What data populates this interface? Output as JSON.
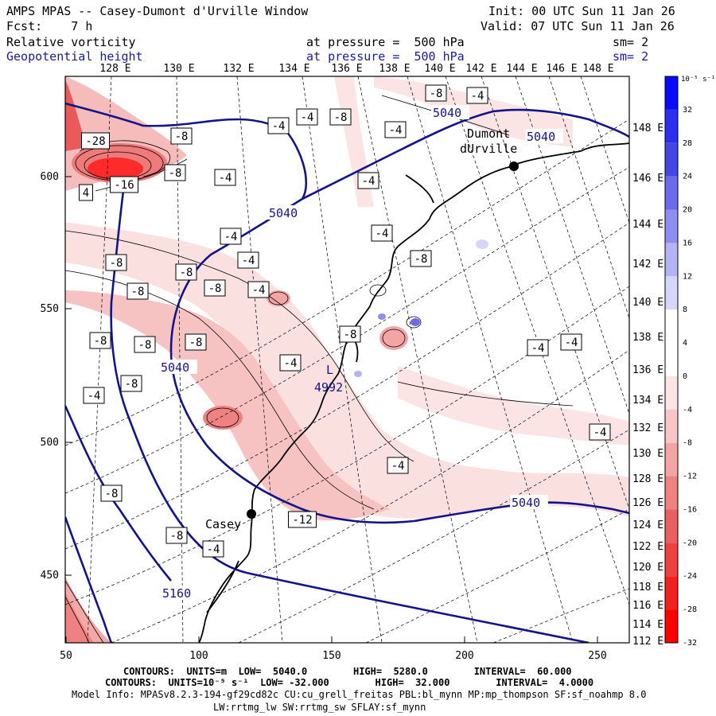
{
  "header": {
    "title": "AMPS MPAS -- Casey-Dumont d'Urville Window",
    "init": "Init: 00 UTC Sun 11 Jan 26",
    "fcst": "Fcst:    7 h",
    "valid": "Valid: 07 UTC Sun 11 Jan 26",
    "field1": {
      "name": "Relative vorticity",
      "level": "at pressure =  500 hPa",
      "sm": "sm= 2"
    },
    "field2": {
      "name": "Geopotential height",
      "level": "at pressure =  500 hPa",
      "sm": "sm= 2"
    }
  },
  "axes": {
    "top_labels": [
      "128 E",
      "130 E",
      "132 E",
      "134 E",
      "136 E",
      "138 E",
      "140 E",
      "142 E",
      "144 E",
      "146 E",
      "148 E"
    ],
    "right_labels": [
      "148 E",
      "146 E",
      "144 E",
      "142 E",
      "140 E",
      "138 E",
      "136 E",
      "134 E",
      "132 E",
      "130 E",
      "128 E",
      "126 E",
      "124 E",
      "122 E",
      "120 E",
      "118 E",
      "116 E",
      "114 E",
      "112 E"
    ],
    "left_labels": [
      "600",
      "550",
      "500",
      "450"
    ],
    "bottom_labels": [
      "50",
      "100",
      "150",
      "200",
      "250"
    ]
  },
  "colorbar": {
    "unit": "10⁻⁵ s⁻¹",
    "labels": [
      "32",
      "28",
      "24",
      "20",
      "16",
      "12",
      "8",
      "4",
      "0",
      "-4",
      "-8",
      "-12",
      "-16",
      "-20",
      "-24",
      "-28",
      "-32"
    ],
    "colors": [
      "#0a0aff",
      "#2e2ef0",
      "#4646e6",
      "#6a6aea",
      "#8e8ef0",
      "#b3b3f6",
      "#d6d6fb",
      "#ffffff",
      "#ffffff",
      "#fce4e4",
      "#f8c6c6",
      "#f3a4a4",
      "#ee8282",
      "#ea6060",
      "#f04040",
      "#f42020",
      "#ff0000"
    ]
  },
  "map_labels": {
    "stations": [
      "Dumont",
      "dUrville",
      "Casey"
    ],
    "height_contours": [
      "5040",
      "5040",
      "5040",
      "5040",
      "5040",
      "5160"
    ],
    "low_marker": "L",
    "low_value": "4992",
    "vort_boxes": [
      "-8",
      "-4",
      "-4",
      "-4",
      "-8",
      "-4",
      "-28",
      "-8",
      "-8",
      "-4",
      "4",
      "-16",
      "-4",
      "-4",
      "-4",
      "-8",
      "-4",
      "-8",
      "-8",
      "-8",
      "-8",
      "-4",
      "-8",
      "-8",
      "-8",
      "-8",
      "-4",
      "-8",
      "-4",
      "-4",
      "-4",
      "-4",
      "-4",
      "-8",
      "-4",
      "-8",
      "-12"
    ]
  },
  "footer": {
    "line1_label": "CONTOURS:  UNITS=m  LOW=  5040.0        HIGH=  5280.0        INTERVAL=  60.000",
    "line2_label": "CONTOURS:  UNITS=10⁻⁵ s⁻¹  LOW= -32.000        HIGH=  32.000        INTERVAL=  4.0000",
    "model_info": "Model Info: MPASv8.2.3-194-gf29cd82c CU:cu_grell_freitas PBL:bl_mynn MP:mp_thompson SF:sf_noahmp 8.0",
    "model_info2": "LW:rrtmg_lw SW:rrtmg_sw SFLAY:sf_mynn"
  }
}
